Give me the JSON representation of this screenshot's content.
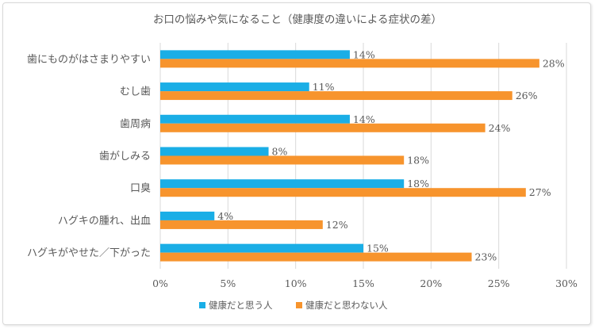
{
  "chart_data": {
    "type": "bar",
    "orientation": "horizontal",
    "title": "お口の悩みや気になること（健康度の違いによる症状の差）",
    "categories": [
      "歯にものがはさまりやすい",
      "むし歯",
      "歯周病",
      "歯がしみる",
      "口臭",
      "ハグキの腫れ、出血",
      "ハグキがやせた／下がった"
    ],
    "series": [
      {
        "name": "健康だと思う人",
        "color": "#1aaee6",
        "values": [
          14,
          11,
          14,
          8,
          18,
          4,
          15
        ]
      },
      {
        "name": "健康だと思わない人",
        "color": "#f7942d",
        "values": [
          28,
          26,
          24,
          18,
          27,
          12,
          23
        ]
      }
    ],
    "xlim": [
      0,
      30
    ],
    "xticks": [
      0,
      5,
      10,
      15,
      20,
      25,
      30
    ],
    "tick_labels": [
      "0%",
      "5%",
      "10%",
      "15%",
      "20%",
      "25%",
      "30%"
    ],
    "value_suffix": "%",
    "grid": true,
    "legend_position": "bottom"
  }
}
